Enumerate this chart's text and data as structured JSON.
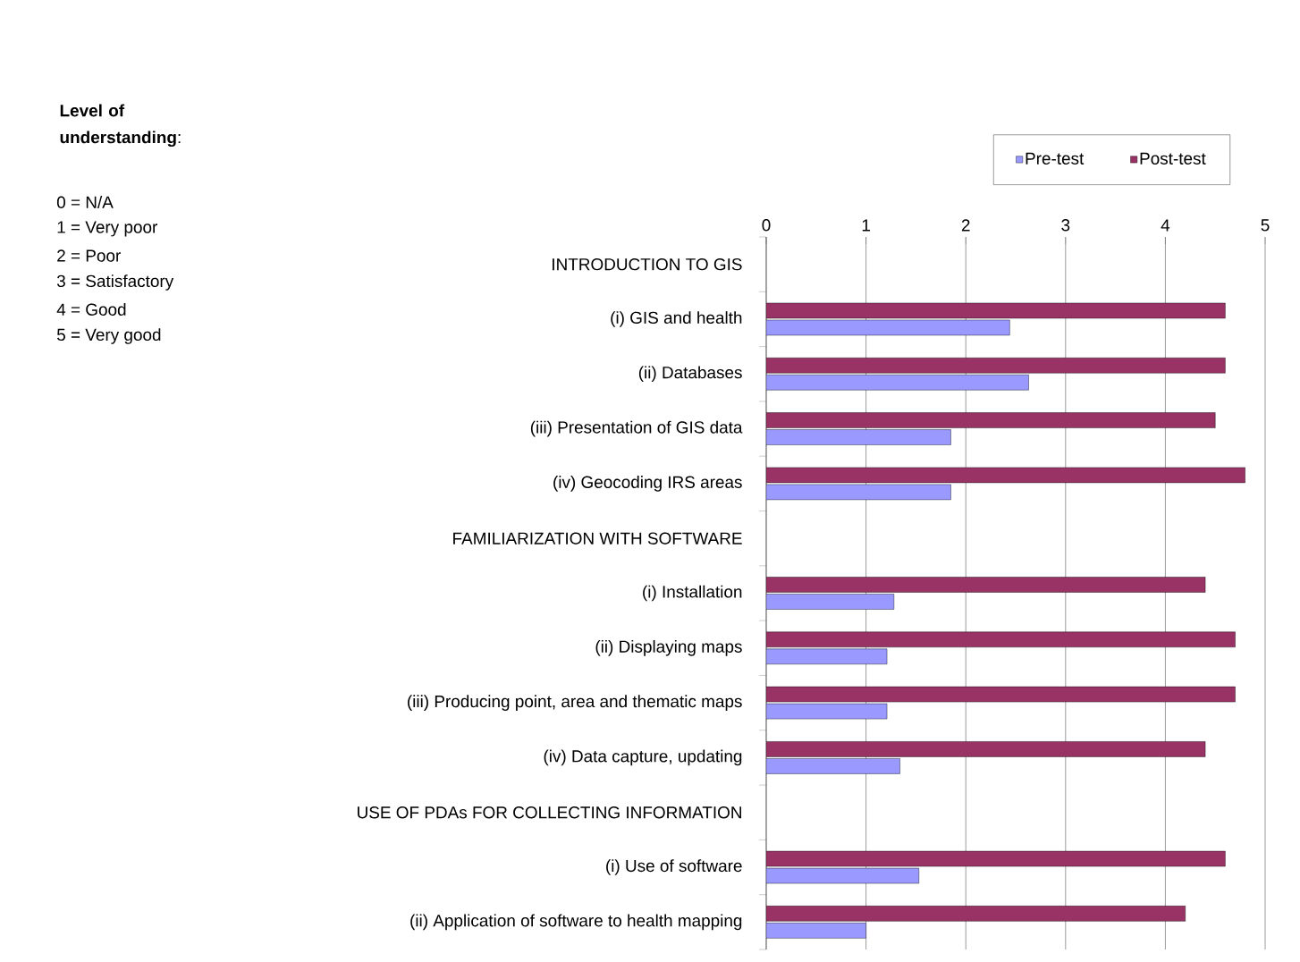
{
  "chart_data": {
    "type": "bar",
    "orientation": "horizontal",
    "categories": [
      "INTRODUCTION TO GIS",
      "(i)  GIS and health",
      "(ii)  Databases",
      "(iii)  Presentation of GIS data",
      "(iv)  Geocoding IRS areas",
      "FAMILIARIZATION WITH SOFTWARE",
      "(i)  Installation",
      "(ii)  Displaying maps",
      "(iii)  Producing point, area and thematic maps",
      "(iv)  Data capture, updating",
      "USE OF PDAs FOR COLLECTING INFORMATION",
      "(i)  Use of software",
      "(ii)  Application of software to health mapping"
    ],
    "series": [
      {
        "name": "Pre-test",
        "color": "#9999ff",
        "values": [
          null,
          2.44,
          2.63,
          1.85,
          1.85,
          null,
          1.28,
          1.21,
          1.21,
          1.34,
          null,
          1.53,
          1.0
        ]
      },
      {
        "name": "Post-test",
        "color": "#993366",
        "values": [
          null,
          4.6,
          4.6,
          4.5,
          4.8,
          null,
          4.4,
          4.7,
          4.7,
          4.4,
          null,
          4.6,
          4.2
        ]
      }
    ],
    "xlim": [
      0,
      5
    ],
    "xticks": [
      0,
      1,
      2,
      3,
      4,
      5
    ],
    "grid": "x",
    "legend": "top right",
    "annotations": [
      "**Level of understanding**:",
      "0 = N/A",
      "1 = Very poor",
      "2 = Poor",
      "3 = Satisfactory",
      "4 = Good",
      "5 = Very good"
    ]
  }
}
